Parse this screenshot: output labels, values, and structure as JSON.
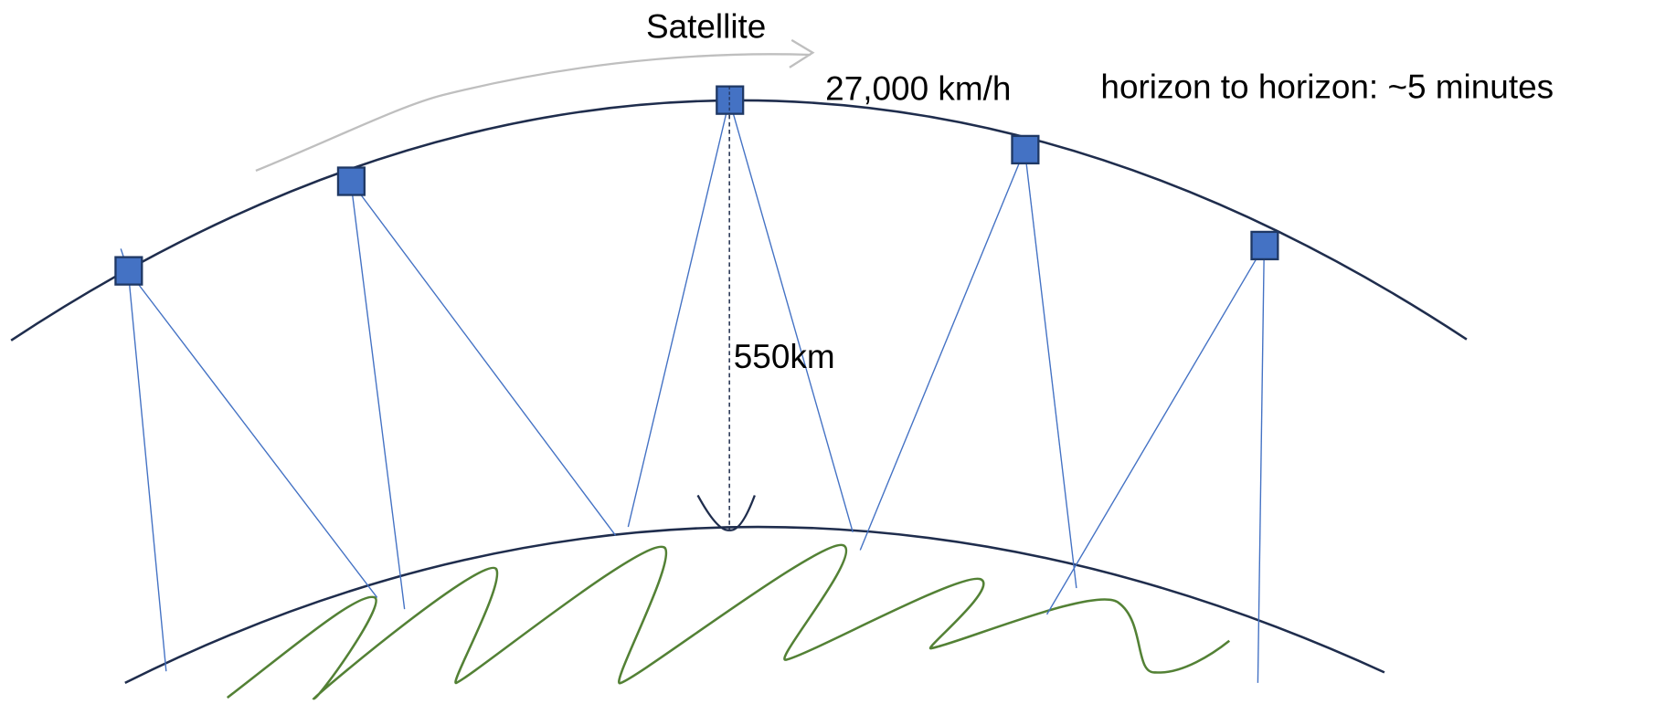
{
  "labels": {
    "satellite": "Satellite",
    "speed": "27,000 km/h",
    "pass_time": "horizon to horizon: ~5 minutes",
    "altitude": "550km"
  }
}
